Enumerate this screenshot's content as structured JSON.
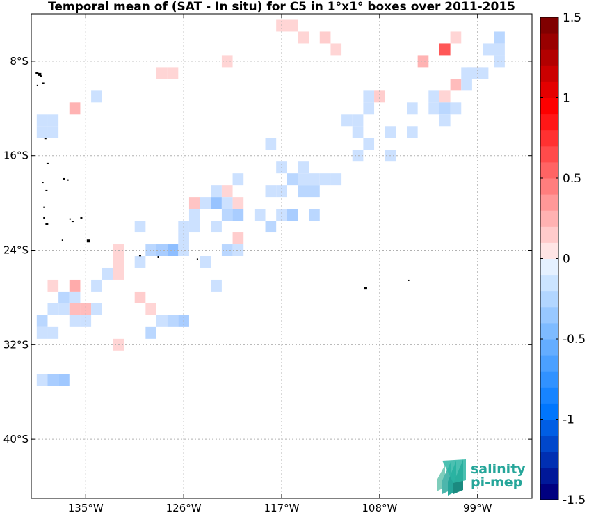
{
  "chart_data": {
    "type": "heatmap",
    "title": "Temporal mean of (SAT - In situ) for C5 in 1°x1° boxes over 2011-2015",
    "x_ticks": [
      {
        "value": -135,
        "label": "135°W"
      },
      {
        "value": -126,
        "label": "126°W"
      },
      {
        "value": -117,
        "label": "117°W"
      },
      {
        "value": -108,
        "label": "108°W"
      },
      {
        "value": -99,
        "label": "99°W"
      }
    ],
    "y_ticks": [
      {
        "value": -8,
        "label": "8°S"
      },
      {
        "value": -16,
        "label": "16°S"
      },
      {
        "value": -24,
        "label": "24°S"
      },
      {
        "value": -32,
        "label": "32°S"
      },
      {
        "value": -40,
        "label": "40°S"
      }
    ],
    "xlim": [
      -140,
      -94
    ],
    "ylim": [
      -45,
      -4
    ],
    "grid": true,
    "colorbar": {
      "range": [
        -1.5,
        1.5
      ],
      "levels": 30,
      "tick_values": [
        1.5,
        1,
        0.5,
        0,
        -0.5,
        -1,
        -1.5
      ],
      "tick_labels": [
        "1.5",
        "1",
        "0.5",
        "0",
        "-0.5",
        "-1",
        "-1.5"
      ]
    },
    "cells": [
      {
        "lon": -117,
        "lat": -5,
        "v": 0.1
      },
      {
        "lon": -116,
        "lat": -5,
        "v": 0.1
      },
      {
        "lon": -113,
        "lat": -6,
        "v": 0.15
      },
      {
        "lon": -115,
        "lat": -6,
        "v": 0.1
      },
      {
        "lon": -101,
        "lat": -6,
        "v": 0.1
      },
      {
        "lon": -97,
        "lat": -6,
        "v": -0.2
      },
      {
        "lon": -102,
        "lat": -7,
        "v": 0.85
      },
      {
        "lon": -112,
        "lat": -7,
        "v": 0.1
      },
      {
        "lon": -97,
        "lat": -7,
        "v": -0.1
      },
      {
        "lon": -98,
        "lat": -7,
        "v": -0.1
      },
      {
        "lon": -104,
        "lat": -8,
        "v": 0.3
      },
      {
        "lon": -122,
        "lat": -8,
        "v": 0.1
      },
      {
        "lon": -97,
        "lat": -8,
        "v": -0.1
      },
      {
        "lon": -128,
        "lat": -9,
        "v": 0.1
      },
      {
        "lon": -127,
        "lat": -9,
        "v": 0.1
      },
      {
        "lon": -99,
        "lat": -9,
        "v": 0.1
      },
      {
        "lon": -100,
        "lat": -9,
        "v": -0.1
      },
      {
        "lon": -99.5,
        "lat": -9,
        "v": -0.1
      },
      {
        "lon": -98.5,
        "lat": -9,
        "v": -0.1
      },
      {
        "lon": -101,
        "lat": -10,
        "v": 0.25
      },
      {
        "lon": -100,
        "lat": -10,
        "v": -0.1
      },
      {
        "lon": -134,
        "lat": -11,
        "v": -0.1
      },
      {
        "lon": -109,
        "lat": -11,
        "v": -0.1
      },
      {
        "lon": -108,
        "lat": -11,
        "v": 0.15
      },
      {
        "lon": -103,
        "lat": -11,
        "v": -0.1
      },
      {
        "lon": -102,
        "lat": -11,
        "v": 0.1
      },
      {
        "lon": -136,
        "lat": -12,
        "v": 0.3
      },
      {
        "lon": -109,
        "lat": -12,
        "v": -0.1
      },
      {
        "lon": -105,
        "lat": -12,
        "v": -0.1
      },
      {
        "lon": -103,
        "lat": -12,
        "v": -0.1
      },
      {
        "lon": -102,
        "lat": -12,
        "v": -0.2
      },
      {
        "lon": -101,
        "lat": -12,
        "v": -0.1
      },
      {
        "lon": -139,
        "lat": -13,
        "v": -0.1
      },
      {
        "lon": -138,
        "lat": -13,
        "v": -0.1
      },
      {
        "lon": -111,
        "lat": -13,
        "v": -0.1
      },
      {
        "lon": -110,
        "lat": -13,
        "v": -0.1
      },
      {
        "lon": -102,
        "lat": -13,
        "v": -0.1
      },
      {
        "lon": -139,
        "lat": -14,
        "v": -0.1
      },
      {
        "lon": -138,
        "lat": -14,
        "v": -0.1
      },
      {
        "lon": -110,
        "lat": -14,
        "v": -0.1
      },
      {
        "lon": -107,
        "lat": -14,
        "v": -0.1
      },
      {
        "lon": -105,
        "lat": -14,
        "v": -0.1
      },
      {
        "lon": -118,
        "lat": -15,
        "v": -0.1
      },
      {
        "lon": -109,
        "lat": -15,
        "v": -0.1
      },
      {
        "lon": -110,
        "lat": -16,
        "v": -0.1
      },
      {
        "lon": -107,
        "lat": -16,
        "v": -0.1
      },
      {
        "lon": -117,
        "lat": -17,
        "v": -0.1
      },
      {
        "lon": -115,
        "lat": -17,
        "v": -0.1
      },
      {
        "lon": -121,
        "lat": -18,
        "v": -0.1
      },
      {
        "lon": -116,
        "lat": -18,
        "v": -0.2
      },
      {
        "lon": -115,
        "lat": -18,
        "v": -0.1
      },
      {
        "lon": -114,
        "lat": -18,
        "v": -0.1
      },
      {
        "lon": -113,
        "lat": -18,
        "v": -0.1
      },
      {
        "lon": -112,
        "lat": -18,
        "v": -0.1
      },
      {
        "lon": -123,
        "lat": -19,
        "v": -0.1
      },
      {
        "lon": -122,
        "lat": -19,
        "v": 0.1
      },
      {
        "lon": -118,
        "lat": -19,
        "v": -0.1
      },
      {
        "lon": -117,
        "lat": -19,
        "v": -0.1
      },
      {
        "lon": -115,
        "lat": -19,
        "v": -0.2
      },
      {
        "lon": -114,
        "lat": -19,
        "v": -0.2
      },
      {
        "lon": -125,
        "lat": -20,
        "v": 0.2
      },
      {
        "lon": -124,
        "lat": -20,
        "v": -0.1
      },
      {
        "lon": -123,
        "lat": -20,
        "v": -0.4
      },
      {
        "lon": -122,
        "lat": -20,
        "v": -0.1
      },
      {
        "lon": -121,
        "lat": -20,
        "v": 0.1
      },
      {
        "lon": -125,
        "lat": -21,
        "v": -0.1
      },
      {
        "lon": -122,
        "lat": -21,
        "v": -0.2
      },
      {
        "lon": -121,
        "lat": -21,
        "v": -0.3
      },
      {
        "lon": -119,
        "lat": -21,
        "v": -0.1
      },
      {
        "lon": -117,
        "lat": -21,
        "v": -0.1
      },
      {
        "lon": -116,
        "lat": -21,
        "v": -0.3
      },
      {
        "lon": -114,
        "lat": -21,
        "v": -0.2
      },
      {
        "lon": -130,
        "lat": -22,
        "v": -0.1
      },
      {
        "lon": -126,
        "lat": -22,
        "v": -0.1
      },
      {
        "lon": -125,
        "lat": -22,
        "v": -0.1
      },
      {
        "lon": -123,
        "lat": -22,
        "v": -0.1
      },
      {
        "lon": -118,
        "lat": -22,
        "v": -0.2
      },
      {
        "lon": -126,
        "lat": -23,
        "v": -0.1
      },
      {
        "lon": -121,
        "lat": -23,
        "v": 0.15
      },
      {
        "lon": -132,
        "lat": -24,
        "v": 0.1
      },
      {
        "lon": -129,
        "lat": -24,
        "v": -0.2
      },
      {
        "lon": -128,
        "lat": -24,
        "v": -0.3
      },
      {
        "lon": -127,
        "lat": -24,
        "v": -0.45
      },
      {
        "lon": -126,
        "lat": -24,
        "v": -0.1
      },
      {
        "lon": -122,
        "lat": -24,
        "v": -0.2
      },
      {
        "lon": -121,
        "lat": -24,
        "v": -0.1
      },
      {
        "lon": -132,
        "lat": -25,
        "v": 0.1
      },
      {
        "lon": -130,
        "lat": -25,
        "v": -0.1
      },
      {
        "lon": -124,
        "lat": -25,
        "v": -0.1
      },
      {
        "lon": -133,
        "lat": -26,
        "v": -0.1
      },
      {
        "lon": -132,
        "lat": -26,
        "v": 0.1
      },
      {
        "lon": -138,
        "lat": -27,
        "v": 0.1
      },
      {
        "lon": -136,
        "lat": -27,
        "v": 0.35
      },
      {
        "lon": -134,
        "lat": -27,
        "v": -0.1
      },
      {
        "lon": -123,
        "lat": -27,
        "v": -0.1
      },
      {
        "lon": -137,
        "lat": -28,
        "v": -0.2
      },
      {
        "lon": -136,
        "lat": -28,
        "v": -0.1
      },
      {
        "lon": -130,
        "lat": -28,
        "v": 0.15
      },
      {
        "lon": -138,
        "lat": -29,
        "v": -0.1
      },
      {
        "lon": -137,
        "lat": -29,
        "v": -0.1
      },
      {
        "lon": -136,
        "lat": -29,
        "v": 0.25
      },
      {
        "lon": -135,
        "lat": -29,
        "v": 0.25
      },
      {
        "lon": -134,
        "lat": -29,
        "v": -0.1
      },
      {
        "lon": -129,
        "lat": -29,
        "v": 0.1
      },
      {
        "lon": -139,
        "lat": -30,
        "v": -0.2
      },
      {
        "lon": -136,
        "lat": -30,
        "v": -0.1
      },
      {
        "lon": -135,
        "lat": -30,
        "v": -0.1
      },
      {
        "lon": -128,
        "lat": -30,
        "v": -0.1
      },
      {
        "lon": -127,
        "lat": -30,
        "v": -0.2
      },
      {
        "lon": -126,
        "lat": -30,
        "v": -0.3
      },
      {
        "lon": -139,
        "lat": -31,
        "v": -0.1
      },
      {
        "lon": -138,
        "lat": -31,
        "v": -0.1
      },
      {
        "lon": -129,
        "lat": -31,
        "v": -0.2
      },
      {
        "lon": -132,
        "lat": -32,
        "v": 0.1
      },
      {
        "lon": -139,
        "lat": -35,
        "v": -0.1
      },
      {
        "lon": -138,
        "lat": -35,
        "v": -0.3
      },
      {
        "lon": -137,
        "lat": -35,
        "v": -0.35
      }
    ],
    "land": [
      {
        "lon": -139.6,
        "lat": -8.9,
        "s": 4
      },
      {
        "lon": -139.4,
        "lat": -9.0,
        "s": 5
      },
      {
        "lon": -139.2,
        "lat": -9.2,
        "s": 3
      },
      {
        "lon": -139.0,
        "lat": -9.8,
        "s": 3
      },
      {
        "lon": -139.5,
        "lat": -10.0,
        "s": 2
      },
      {
        "lon": -138.8,
        "lat": -14.5,
        "s": 3
      },
      {
        "lon": -138.6,
        "lat": -16.6,
        "s": 3
      },
      {
        "lon": -139.0,
        "lat": -18.2,
        "s": 2
      },
      {
        "lon": -138.7,
        "lat": -18.9,
        "s": 3
      },
      {
        "lon": -137.1,
        "lat": -17.9,
        "s": 3
      },
      {
        "lon": -136.7,
        "lat": -18.0,
        "s": 2
      },
      {
        "lon": -138.9,
        "lat": -20.3,
        "s": 2
      },
      {
        "lon": -138.7,
        "lat": -21.7,
        "s": 4
      },
      {
        "lon": -138.9,
        "lat": -21.2,
        "s": 2
      },
      {
        "lon": -136.5,
        "lat": -21.3,
        "s": 2
      },
      {
        "lon": -136.3,
        "lat": -21.5,
        "s": 3
      },
      {
        "lon": -135.5,
        "lat": -21.2,
        "s": 3
      },
      {
        "lon": -134.9,
        "lat": -23.1,
        "s": 5
      },
      {
        "lon": -137.2,
        "lat": -23.1,
        "s": 2
      },
      {
        "lon": -130.1,
        "lat": -24.4,
        "s": 3
      },
      {
        "lon": -128.4,
        "lat": -24.5,
        "s": 2
      },
      {
        "lon": -124.8,
        "lat": -24.7,
        "s": 2
      },
      {
        "lon": -109.4,
        "lat": -27.1,
        "s": 4
      },
      {
        "lon": -105.4,
        "lat": -26.5,
        "s": 2
      }
    ]
  },
  "logo": {
    "line1": "salinity",
    "line2": "pi-mep"
  }
}
